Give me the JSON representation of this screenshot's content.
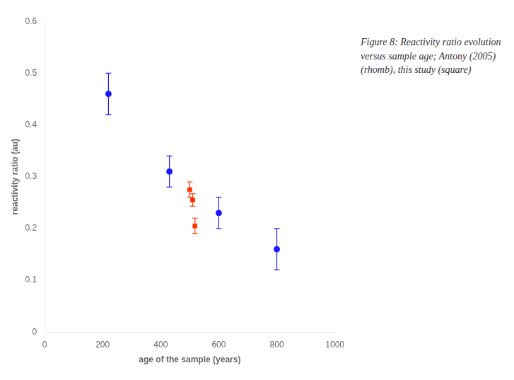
{
  "chart_data": {
    "type": "scatter",
    "xlabel": "age of the sample (years)",
    "ylabel": "reactivity ratio (au)",
    "annotations": [
      "Figure 8: Reactivity ratio evolution\nversus sample age; Antony (2005)\n(rhomb), this study (square)"
    ],
    "series": [
      {
        "color": "#1a1aff",
        "marker": "circle",
        "x": [
          220,
          430,
          600,
          800
        ],
        "values": [
          0.46,
          0.31,
          0.23,
          0.16
        ],
        "yerr": [
          0.04,
          0.03,
          0.03,
          0.04
        ]
      },
      {
        "color": "#ff3300",
        "marker": "square",
        "x": [
          500,
          510,
          518
        ],
        "values": [
          0.275,
          0.255,
          0.205
        ],
        "yerr": [
          0.015,
          0.012,
          0.015
        ]
      }
    ],
    "xlim": [
      0,
      1000
    ],
    "ylim": [
      0,
      0.6
    ],
    "xticks": [
      0,
      200,
      400,
      600,
      800,
      1000
    ],
    "yticks": [
      0,
      0.1,
      0.2,
      0.3,
      0.4,
      0.5,
      0.6
    ],
    "grid": false
  }
}
